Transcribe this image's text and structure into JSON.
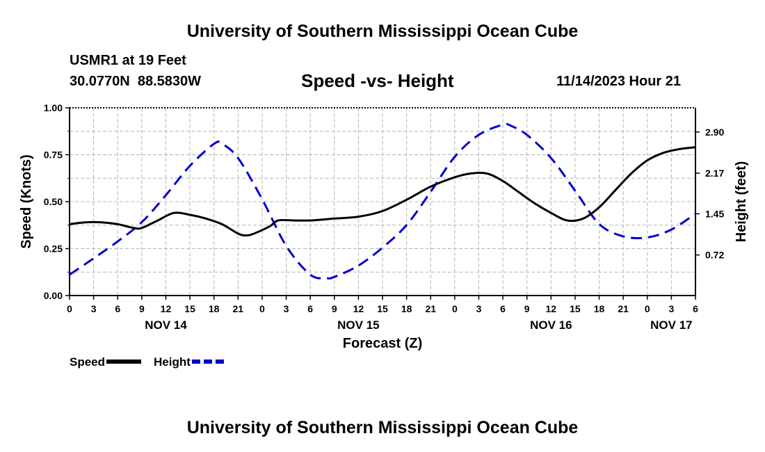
{
  "page": {
    "title_top": "University of Southern Mississippi Ocean Cube",
    "title_bottom": "University of Southern Mississippi Ocean Cube",
    "station": "USMR1 at 19 Feet",
    "coords": "30.0770N  88.5830W",
    "subtitle": "Speed -vs- Height",
    "datetime": "11/14/2023 Hour 21"
  },
  "chart_data": {
    "type": "line",
    "title": "Speed -vs- Height",
    "xlabel": "Forecast (Z)",
    "ylabel": "Speed (Knots)",
    "y2label": "Height (feet)",
    "x_range_hours": [
      0,
      78
    ],
    "ylim": [
      0,
      1.0
    ],
    "y2lim": [
      0.0,
      3.33
    ],
    "y_ticks": [
      "0.00",
      "0.25",
      "0.50",
      "0.75",
      "1.00"
    ],
    "y2_ticks": [
      {
        "value": 0.72,
        "label": "0.72"
      },
      {
        "value": 1.45,
        "label": "1.45"
      },
      {
        "value": 2.17,
        "label": "2.17"
      },
      {
        "value": 2.9,
        "label": "2.90"
      }
    ],
    "x_ticks": [
      {
        "hour": 0,
        "label": "0"
      },
      {
        "hour": 3,
        "label": "3"
      },
      {
        "hour": 6,
        "label": "6"
      },
      {
        "hour": 9,
        "label": "9"
      },
      {
        "hour": 12,
        "label": "12"
      },
      {
        "hour": 15,
        "label": "15"
      },
      {
        "hour": 18,
        "label": "18"
      },
      {
        "hour": 21,
        "label": "21"
      },
      {
        "hour": 24,
        "label": "0"
      },
      {
        "hour": 27,
        "label": "3"
      },
      {
        "hour": 30,
        "label": "6"
      },
      {
        "hour": 33,
        "label": "9"
      },
      {
        "hour": 36,
        "label": "12"
      },
      {
        "hour": 39,
        "label": "15"
      },
      {
        "hour": 42,
        "label": "18"
      },
      {
        "hour": 45,
        "label": "21"
      },
      {
        "hour": 48,
        "label": "0"
      },
      {
        "hour": 51,
        "label": "3"
      },
      {
        "hour": 54,
        "label": "6"
      },
      {
        "hour": 57,
        "label": "9"
      },
      {
        "hour": 60,
        "label": "12"
      },
      {
        "hour": 63,
        "label": "15"
      },
      {
        "hour": 66,
        "label": "18"
      },
      {
        "hour": 69,
        "label": "21"
      },
      {
        "hour": 72,
        "label": "0"
      },
      {
        "hour": 75,
        "label": "3"
      },
      {
        "hour": 78,
        "label": "6"
      }
    ],
    "day_labels": [
      {
        "hour": 12,
        "label": "NOV 14"
      },
      {
        "hour": 36,
        "label": "NOV 15"
      },
      {
        "hour": 60,
        "label": "NOV 16"
      },
      {
        "hour": 75,
        "label": "NOV 17"
      }
    ],
    "series": [
      {
        "name": "Speed",
        "axis": "left",
        "color": "#000000",
        "dash": "solid",
        "x": [
          0,
          2,
          4,
          6,
          8,
          9,
          11,
          13,
          15,
          17,
          19,
          21,
          22,
          23,
          25,
          26,
          28,
          30,
          33,
          36,
          39,
          42,
          45,
          48,
          50,
          52,
          54,
          56,
          58,
          60,
          62,
          64,
          66,
          68,
          70,
          72,
          74,
          76,
          78
        ],
        "values": [
          0.38,
          0.39,
          0.39,
          0.38,
          0.36,
          0.36,
          0.4,
          0.44,
          0.43,
          0.41,
          0.38,
          0.33,
          0.32,
          0.33,
          0.37,
          0.4,
          0.4,
          0.4,
          0.41,
          0.42,
          0.45,
          0.51,
          0.58,
          0.63,
          0.65,
          0.65,
          0.61,
          0.55,
          0.49,
          0.44,
          0.4,
          0.41,
          0.47,
          0.56,
          0.65,
          0.72,
          0.76,
          0.78,
          0.79
        ]
      },
      {
        "name": "Height",
        "axis": "right",
        "color": "#0000cc",
        "dash": "dashed",
        "x": [
          0,
          3,
          6,
          9,
          12,
          15,
          18,
          19,
          21,
          24,
          27,
          30,
          32,
          33,
          36,
          39,
          42,
          45,
          48,
          51,
          54,
          55,
          57,
          60,
          63,
          66,
          69,
          72,
          75,
          78
        ],
        "values": [
          0.37,
          0.66,
          0.96,
          1.3,
          1.78,
          2.3,
          2.69,
          2.69,
          2.44,
          1.71,
          0.88,
          0.37,
          0.31,
          0.33,
          0.53,
          0.85,
          1.25,
          1.84,
          2.46,
          2.85,
          3.03,
          3.01,
          2.85,
          2.44,
          1.86,
          1.27,
          1.05,
          1.03,
          1.17,
          1.45
        ]
      }
    ],
    "legend": [
      {
        "name": "Speed",
        "color": "#000000",
        "dash": "solid"
      },
      {
        "name": "Height",
        "color": "#0000cc",
        "dash": "dashed"
      }
    ],
    "grid": true
  }
}
